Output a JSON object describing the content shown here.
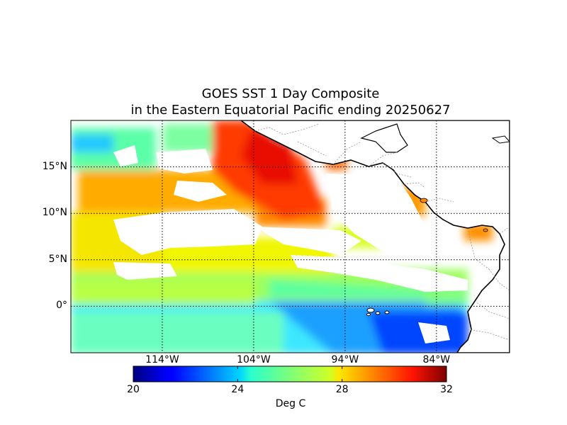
{
  "title_line1": "GOES SST 1 Day Composite",
  "title_line2": "in the Eastern Equatorial Pacific ending 20250627",
  "lat_labels": [
    "15°N",
    "10°N",
    "5°N",
    "0°"
  ],
  "lat_values": [
    15,
    10,
    5,
    0
  ],
  "lon_labels": [
    "114°W",
    "104°W",
    "94°W",
    "84°W"
  ],
  "lon_values": [
    -114,
    -104,
    -94,
    -84
  ],
  "map_extent": {
    "lon_min": -124,
    "lon_max": -76,
    "lat_min": -5,
    "lat_max": 20
  },
  "colorbar": {
    "label": "Deg C",
    "ticks": [
      "20",
      "24",
      "28",
      "32"
    ],
    "range": [
      20,
      32
    ],
    "colormap": "jet"
  },
  "colors": {
    "land": "#ffffff",
    "coastline": "#000000",
    "missing_data": "#ffffff"
  }
}
